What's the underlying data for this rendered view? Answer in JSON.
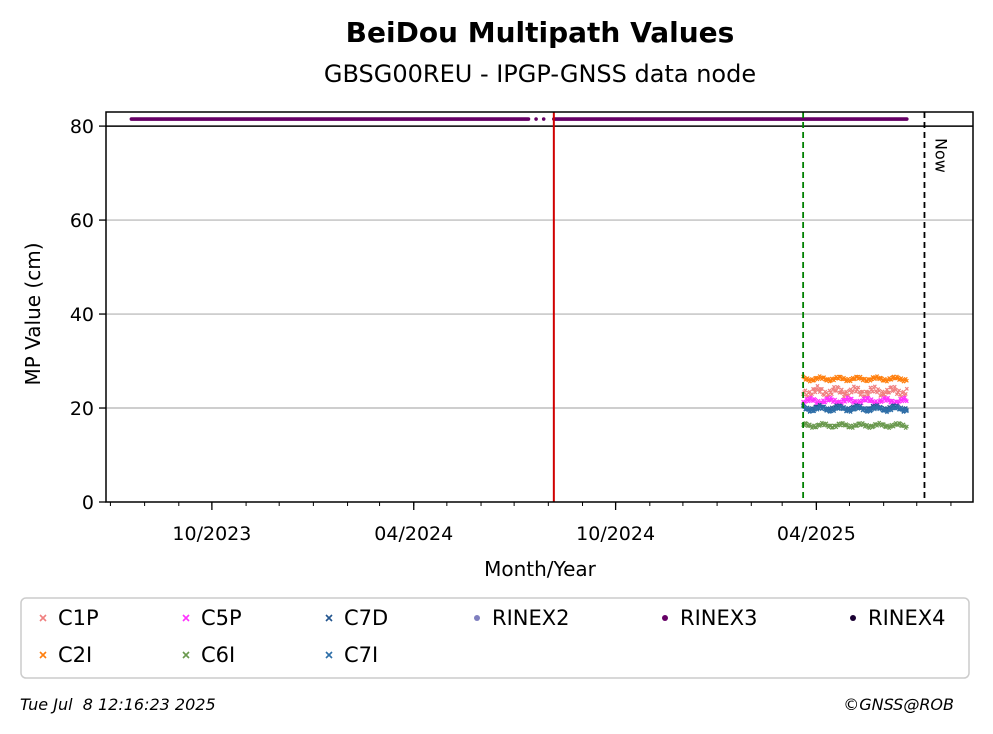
{
  "chart_data": {
    "type": "scatter",
    "title": "BeiDou Multipath Values",
    "subtitle": "GBSG00REU - IPGP-GNSS data node",
    "xlabel": "Month/Year",
    "ylabel": "MP Value (cm)",
    "ylim": [
      0,
      83
    ],
    "xlim": [
      "2023-06-27",
      "2025-08-21"
    ],
    "grid": "horizontal",
    "yticks": [
      0,
      20,
      40,
      60,
      80
    ],
    "xticks": [
      {
        "date": "2023-10-01",
        "label": "10/2023"
      },
      {
        "date": "2024-04-01",
        "label": "04/2024"
      },
      {
        "date": "2024-10-01",
        "label": "10/2024"
      },
      {
        "date": "2025-04-01",
        "label": "04/2025"
      }
    ],
    "vlines": [
      {
        "date": "2024-08-06",
        "color": "#d00000",
        "style": "solid"
      },
      {
        "date": "2025-03-20",
        "color": "#008000",
        "style": "dashed"
      },
      {
        "date": "2025-07-08",
        "color": "#000000",
        "style": "dashed",
        "label": "Now"
      }
    ],
    "hline_ref": 80,
    "series": [
      {
        "name": "C1P",
        "color": "#f08080",
        "marker": "x",
        "x_start": "2025-03-20",
        "x_end": "2025-06-22",
        "mean": 23.5,
        "spread": 1.2
      },
      {
        "name": "C2I",
        "color": "#ff7f0e",
        "marker": "x",
        "x_start": "2025-03-20",
        "x_end": "2025-06-22",
        "mean": 26.2,
        "spread": 0.6
      },
      {
        "name": "C5P",
        "color": "#ff33ff",
        "marker": "x",
        "x_start": "2025-03-20",
        "x_end": "2025-06-22",
        "mean": 21.5,
        "spread": 0.8
      },
      {
        "name": "C6I",
        "color": "#6a994e",
        "marker": "x",
        "x_start": "2025-03-20",
        "x_end": "2025-06-22",
        "mean": 16.3,
        "spread": 0.6
      },
      {
        "name": "C7D",
        "color": "#24568f",
        "marker": "x",
        "x_start": "2025-03-20",
        "x_end": "2025-06-22",
        "mean": 20.0,
        "spread": 0.7
      },
      {
        "name": "C7I",
        "color": "#2e6fa8",
        "marker": "x",
        "x_start": "2025-03-20",
        "x_end": "2025-06-22",
        "mean": 19.8,
        "spread": 0.7
      },
      {
        "name": "RINEX2",
        "color": "#7f7fbf",
        "marker": "o"
      },
      {
        "name": "RINEX3",
        "color": "#660066",
        "marker": "o",
        "x_start": "2023-07-20",
        "x_end": "2025-06-22",
        "value": 81.5,
        "gap": [
          "2024-07-14",
          "2024-08-06"
        ]
      },
      {
        "name": "RINEX4",
        "color": "#1a0033",
        "marker": "o"
      }
    ]
  },
  "footer": {
    "timestamp": "Tue Jul  8 12:16:23 2025",
    "credit": "©GNSS@ROB"
  }
}
